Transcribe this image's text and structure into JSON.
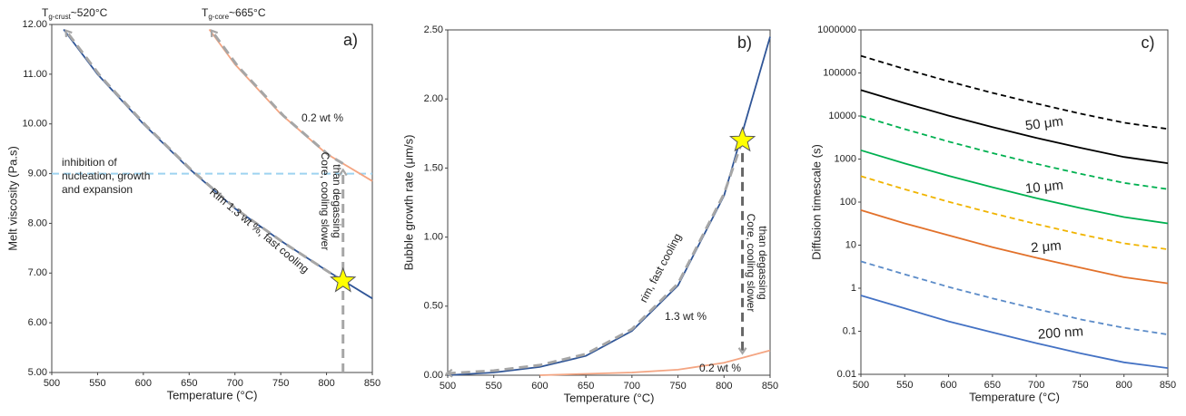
{
  "chart_data": [
    {
      "type": "line",
      "panel": "a)",
      "xlabel": "Temperature (°C)",
      "ylabel": "Melt viscosity (Pa.s)",
      "xlim": [
        500,
        850
      ],
      "ylim": [
        5,
        12
      ],
      "log": false,
      "xticks": [
        500,
        550,
        600,
        650,
        700,
        750,
        800,
        850
      ],
      "yticks": [
        {
          "value": 5,
          "label": "5.00"
        },
        {
          "value": 6,
          "label": "6.00"
        },
        {
          "value": 7,
          "label": "7.00"
        },
        {
          "value": 8,
          "label": "8.00"
        },
        {
          "value": 9,
          "label": "9.00"
        },
        {
          "value": 10,
          "label": "10.00"
        },
        {
          "value": 11,
          "label": "11.00"
        },
        {
          "value": 12,
          "label": "12.00"
        }
      ],
      "series": [
        {
          "color": "#2f5597",
          "dash": false,
          "x": [
            513,
            550,
            600,
            650,
            700,
            750,
            800,
            850
          ],
          "values": [
            11.9,
            11.0,
            10.0,
            9.1,
            8.3,
            7.65,
            7.05,
            6.49
          ]
        },
        {
          "color": "#f4a582",
          "dash": false,
          "x": [
            672,
            700,
            750,
            800,
            850
          ],
          "values": [
            11.9,
            11.2,
            10.2,
            9.4,
            8.85
          ]
        }
      ],
      "hline": {
        "value": 9,
        "color": "#9dd3f0"
      },
      "marker": {
        "x": 818,
        "y": 6.84,
        "color": "#ffff00"
      },
      "annotations": [
        {
          "text": "T",
          "sub": "g-crust",
          "after": "~520°C"
        },
        {
          "text": "T",
          "sub": "g-core",
          "after": "~665°C"
        },
        {
          "text": "0.2 wt %"
        },
        {
          "text": "inhibition of"
        },
        {
          "text": "nucleation, growth"
        },
        {
          "text": "and expansion"
        },
        {
          "text": "Rim 1.3 wt %, fast cooling"
        },
        {
          "text": "Core, cooling slower"
        },
        {
          "text": "than degassing"
        }
      ]
    },
    {
      "type": "line",
      "panel": "b)",
      "xlabel": "Temperature (°C)",
      "ylabel": "Bubble growth rate (μm/s)",
      "xlim": [
        500,
        850
      ],
      "ylim": [
        0,
        2.5
      ],
      "log": false,
      "xticks": [
        500,
        550,
        600,
        650,
        700,
        750,
        800,
        850
      ],
      "yticks": [
        {
          "value": 0,
          "label": "0.00"
        },
        {
          "value": 0.5,
          "label": "0.50"
        },
        {
          "value": 1,
          "label": "1.00"
        },
        {
          "value": 1.5,
          "label": "1.50"
        },
        {
          "value": 2,
          "label": "2.00"
        },
        {
          "value": 2.5,
          "label": "2.50"
        }
      ],
      "series": [
        {
          "color": "#2f5597",
          "dash": false,
          "x": [
            500,
            550,
            600,
            650,
            700,
            750,
            800,
            850
          ],
          "values": [
            0,
            0.02,
            0.06,
            0.14,
            0.32,
            0.65,
            1.3,
            2.45
          ]
        },
        {
          "color": "#f4a582",
          "dash": false,
          "x": [
            600,
            650,
            700,
            750,
            800,
            850
          ],
          "values": [
            0,
            0.01,
            0.02,
            0.04,
            0.09,
            0.18
          ]
        }
      ],
      "marker": {
        "x": 820,
        "y": 1.7,
        "color": "#ffff00"
      },
      "annotations": [
        {
          "text": "rim, fast cooling"
        },
        {
          "text": "1.3 wt %"
        },
        {
          "text": "0.2 wt %"
        },
        {
          "text": "Core, cooling slower"
        },
        {
          "text": "than degassing"
        }
      ]
    },
    {
      "type": "line",
      "panel": "c)",
      "xlabel": "Temperature (°C)",
      "ylabel": "Diffusion timescale (s)",
      "xlim": [
        500,
        850
      ],
      "ylim": [
        0.01,
        1000000
      ],
      "log": true,
      "xticks": [
        500,
        550,
        600,
        650,
        700,
        750,
        800,
        850
      ],
      "yticks": [
        0.01,
        0.1,
        1,
        10,
        100,
        1000,
        10000,
        100000,
        1000000
      ],
      "series": [
        {
          "color": "#000000",
          "dash": true,
          "x": [
            500,
            550,
            600,
            650,
            700,
            750,
            800,
            850
          ],
          "values": [
            250000,
            123500,
            63800,
            34500,
            19500,
            11400,
            7000,
            5000
          ]
        },
        {
          "color": "#000000",
          "dash": false,
          "x": [
            500,
            550,
            600,
            650,
            700,
            750,
            800,
            850
          ],
          "values": [
            40000,
            19800,
            10200,
            5520,
            3110,
            1830,
            1120,
            800
          ]
        },
        {
          "color": "#00b050",
          "dash": true,
          "x": [
            500,
            550,
            600,
            650,
            700,
            750,
            800,
            850
          ],
          "values": [
            10000,
            4940,
            2550,
            1380,
            778,
            457,
            280,
            200
          ]
        },
        {
          "color": "#00b050",
          "dash": false,
          "x": [
            500,
            550,
            600,
            650,
            700,
            750,
            800,
            850
          ],
          "values": [
            1600,
            790,
            408,
            221,
            124,
            73,
            45,
            32
          ]
        },
        {
          "color": "#f0b400",
          "dash": true,
          "x": [
            500,
            550,
            600,
            650,
            700,
            750,
            800,
            850
          ],
          "values": [
            400,
            198,
            102,
            55,
            31,
            18,
            11,
            8
          ]
        },
        {
          "color": "#e2712b",
          "dash": false,
          "x": [
            500,
            550,
            600,
            650,
            700,
            750,
            800,
            850
          ],
          "values": [
            65,
            32,
            17,
            9,
            5.1,
            3.0,
            1.8,
            1.3
          ]
        },
        {
          "color": "#5b8bc8",
          "dash": true,
          "x": [
            500,
            550,
            600,
            650,
            700,
            750,
            800,
            850
          ],
          "values": [
            4.2,
            2.1,
            1.07,
            0.58,
            0.33,
            0.19,
            0.12,
            0.084
          ]
        },
        {
          "color": "#4472c4",
          "dash": false,
          "x": [
            500,
            550,
            600,
            650,
            700,
            750,
            800,
            850
          ],
          "values": [
            0.68,
            0.34,
            0.17,
            0.094,
            0.053,
            0.031,
            0.019,
            0.014
          ]
        }
      ],
      "annotations": [
        {
          "text": "50 μm",
          "color": "#000000"
        },
        {
          "text": "10 μm",
          "color": "#00b050"
        },
        {
          "text": "2 μm",
          "color": "#e2712b"
        },
        {
          "text": "200 nm",
          "color": "#4472c4"
        }
      ]
    }
  ]
}
